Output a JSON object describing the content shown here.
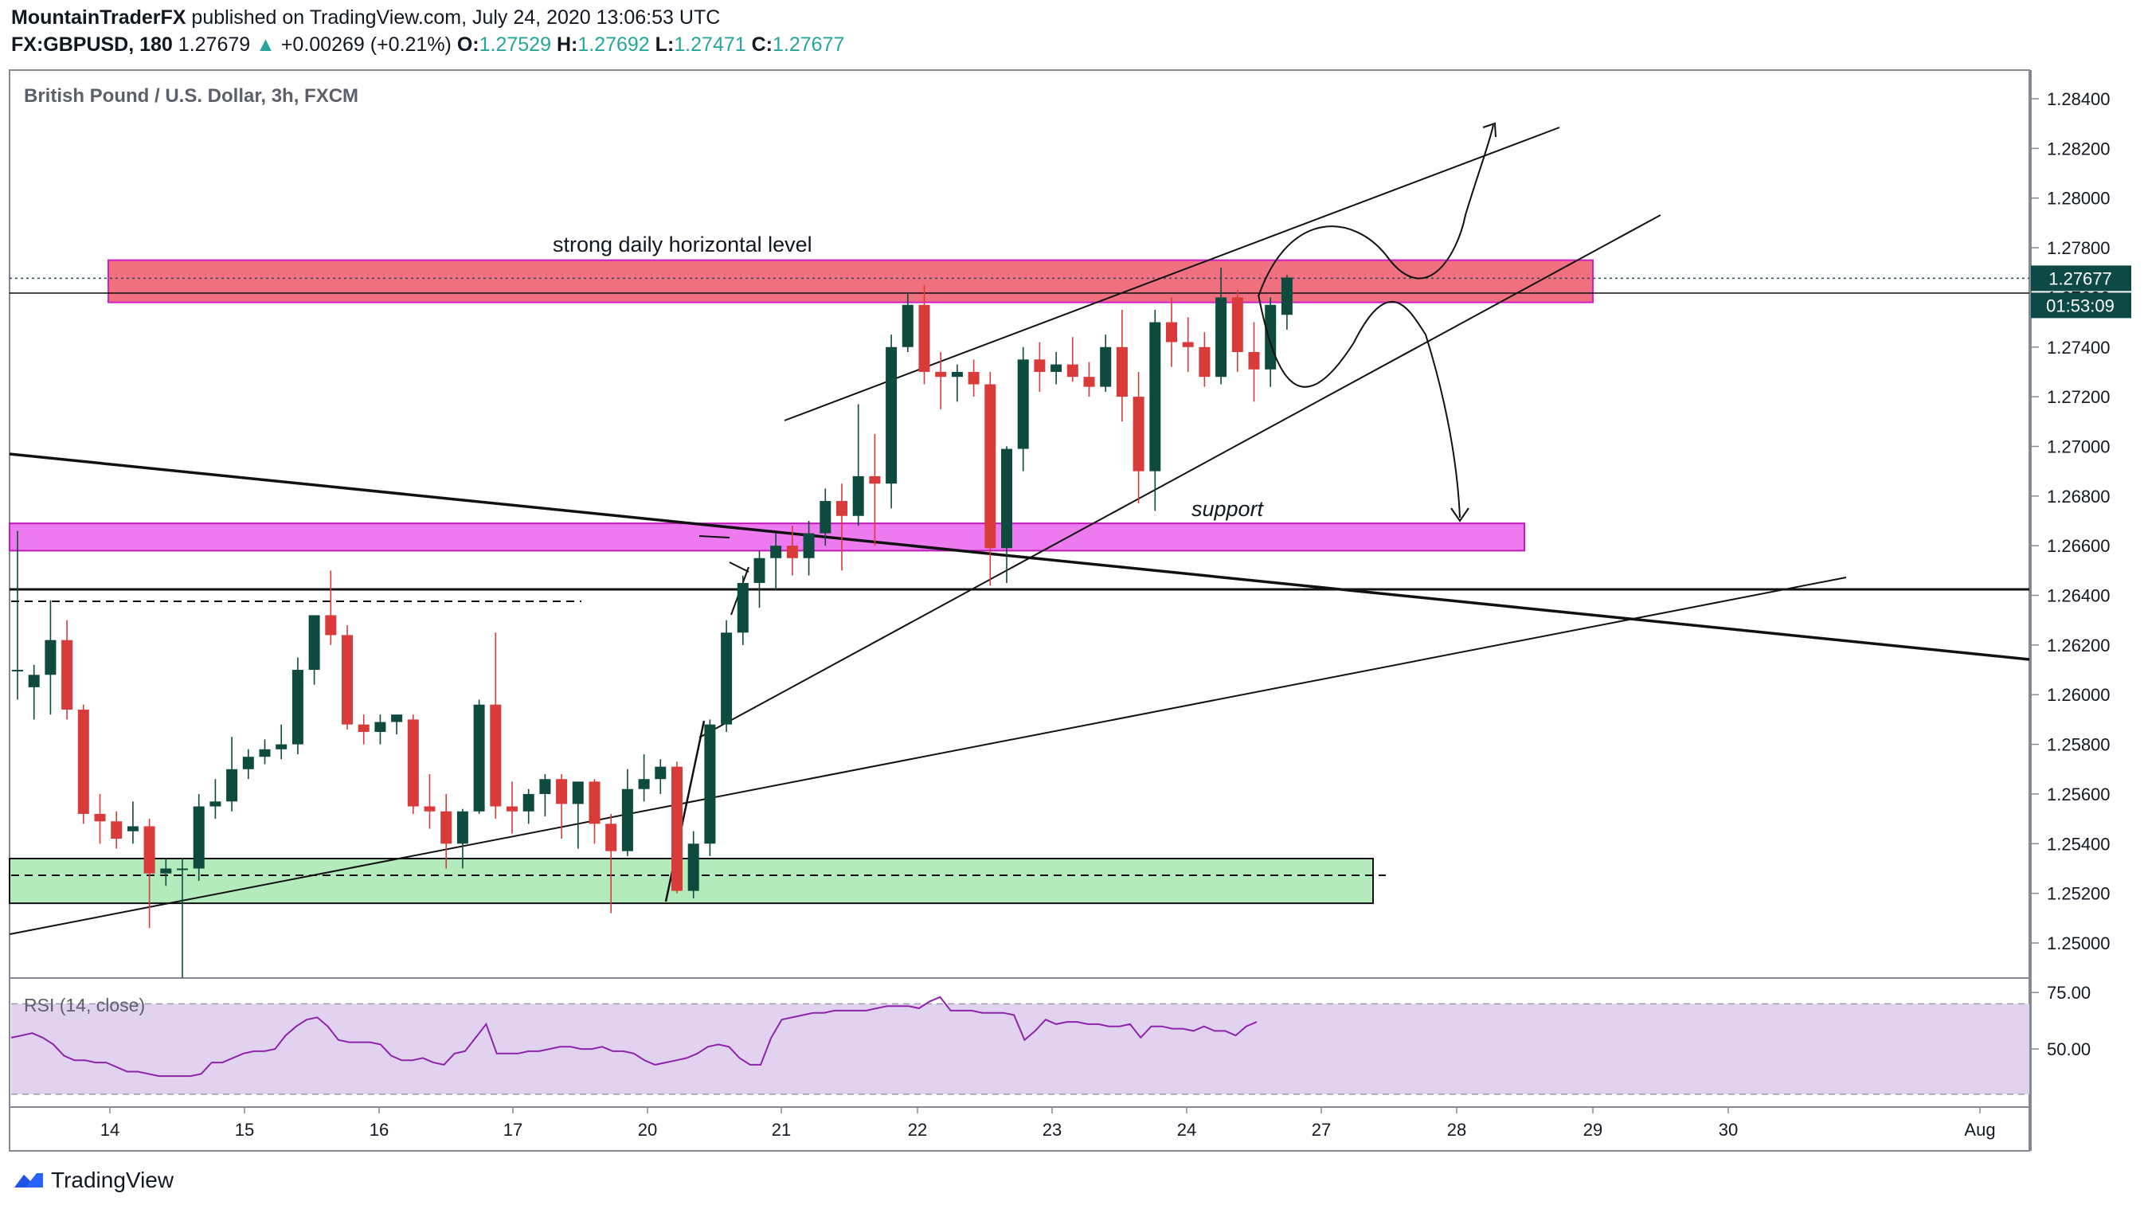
{
  "header": {
    "author": "MountainTraderFX",
    "published": "published on TradingView.com, July 24, 2020 13:06:53 UTC",
    "symbol": "FX:GBPUSD, 180",
    "price": "1.27679",
    "change_arrow": "▲",
    "change": "+0.00269 (+0.21%)",
    "o_label": "O:",
    "o": "1.27529",
    "h_label": "H:",
    "h": "1.27692",
    "l_label": "L:",
    "l": "1.27471",
    "c_label": "C:",
    "c": "1.27677"
  },
  "chart_data": {
    "type": "candlestick",
    "title": "British Pound / U.S. Dollar, 3h, FXCM",
    "y_axis": {
      "ticks": [
        "1.28400",
        "1.28200",
        "1.28000",
        "1.27800",
        "1.27600",
        "1.27400",
        "1.27200",
        "1.27000",
        "1.26800",
        "1.26600",
        "1.26400",
        "1.26200",
        "1.26000",
        "1.25800",
        "1.25600",
        "1.25400",
        "1.25200",
        "1.25000"
      ],
      "range": [
        1.249,
        1.2851
      ]
    },
    "x_axis": {
      "ticks": [
        "14",
        "15",
        "16",
        "17",
        "20",
        "21",
        "22",
        "23",
        "24",
        "27",
        "28",
        "29",
        "30",
        "Aug"
      ]
    },
    "last_price_label": "1.27677",
    "countdown_label": "01:53:09",
    "candles": [
      {
        "o": 1.261,
        "h": 1.2666,
        "l": 1.2598,
        "c": 1.261
      },
      {
        "o": 1.2603,
        "h": 1.2612,
        "l": 1.259,
        "c": 1.2608
      },
      {
        "o": 1.2608,
        "h": 1.2638,
        "l": 1.2592,
        "c": 1.2622
      },
      {
        "o": 1.2622,
        "h": 1.263,
        "l": 1.259,
        "c": 1.2594
      },
      {
        "o": 1.2594,
        "h": 1.2596,
        "l": 1.2548,
        "c": 1.2552
      },
      {
        "o": 1.2552,
        "h": 1.256,
        "l": 1.254,
        "c": 1.2549
      },
      {
        "o": 1.2549,
        "h": 1.2553,
        "l": 1.2538,
        "c": 1.2542
      },
      {
        "o": 1.2545,
        "h": 1.2557,
        "l": 1.254,
        "c": 1.2547
      },
      {
        "o": 1.2547,
        "h": 1.255,
        "l": 1.2506,
        "c": 1.2528
      },
      {
        "o": 1.2528,
        "h": 1.2534,
        "l": 1.2523,
        "c": 1.253
      },
      {
        "o": 1.253,
        "h": 1.2534,
        "l": 1.2486,
        "c": 1.253
      },
      {
        "o": 1.253,
        "h": 1.256,
        "l": 1.2525,
        "c": 1.2555
      },
      {
        "o": 1.2555,
        "h": 1.2566,
        "l": 1.255,
        "c": 1.2557
      },
      {
        "o": 1.2557,
        "h": 1.2583,
        "l": 1.2553,
        "c": 1.257
      },
      {
        "o": 1.257,
        "h": 1.2578,
        "l": 1.2566,
        "c": 1.2575
      },
      {
        "o": 1.2575,
        "h": 1.2582,
        "l": 1.2572,
        "c": 1.2578
      },
      {
        "o": 1.2578,
        "h": 1.2588,
        "l": 1.2574,
        "c": 1.258
      },
      {
        "o": 1.258,
        "h": 1.2615,
        "l": 1.2576,
        "c": 1.261
      },
      {
        "o": 1.261,
        "h": 1.2632,
        "l": 1.2604,
        "c": 1.2632
      },
      {
        "o": 1.2632,
        "h": 1.265,
        "l": 1.262,
        "c": 1.2624
      },
      {
        "o": 1.2624,
        "h": 1.2628,
        "l": 1.2586,
        "c": 1.2588
      },
      {
        "o": 1.2588,
        "h": 1.2592,
        "l": 1.258,
        "c": 1.2585
      },
      {
        "o": 1.2585,
        "h": 1.2592,
        "l": 1.258,
        "c": 1.2589
      },
      {
        "o": 1.2589,
        "h": 1.2592,
        "l": 1.2584,
        "c": 1.2592
      },
      {
        "o": 1.259,
        "h": 1.2592,
        "l": 1.2552,
        "c": 1.2555
      },
      {
        "o": 1.2555,
        "h": 1.2568,
        "l": 1.2546,
        "c": 1.2553
      },
      {
        "o": 1.2553,
        "h": 1.256,
        "l": 1.253,
        "c": 1.254
      },
      {
        "o": 1.254,
        "h": 1.2554,
        "l": 1.253,
        "c": 1.2553
      },
      {
        "o": 1.2553,
        "h": 1.2598,
        "l": 1.2552,
        "c": 1.2596
      },
      {
        "o": 1.2596,
        "h": 1.2625,
        "l": 1.255,
        "c": 1.2555
      },
      {
        "o": 1.2555,
        "h": 1.2565,
        "l": 1.2544,
        "c": 1.2553
      },
      {
        "o": 1.2553,
        "h": 1.2562,
        "l": 1.2548,
        "c": 1.256
      },
      {
        "o": 1.256,
        "h": 1.2568,
        "l": 1.2551,
        "c": 1.2566
      },
      {
        "o": 1.2566,
        "h": 1.2568,
        "l": 1.2542,
        "c": 1.2556
      },
      {
        "o": 1.2556,
        "h": 1.2565,
        "l": 1.2538,
        "c": 1.2565
      },
      {
        "o": 1.2565,
        "h": 1.2566,
        "l": 1.254,
        "c": 1.2548
      },
      {
        "o": 1.2548,
        "h": 1.2552,
        "l": 1.2512,
        "c": 1.2537
      },
      {
        "o": 1.2537,
        "h": 1.257,
        "l": 1.2535,
        "c": 1.2562
      },
      {
        "o": 1.2562,
        "h": 1.2576,
        "l": 1.2557,
        "c": 1.2566
      },
      {
        "o": 1.2566,
        "h": 1.2574,
        "l": 1.256,
        "c": 1.2571
      },
      {
        "o": 1.2571,
        "h": 1.2573,
        "l": 1.252,
        "c": 1.2521
      },
      {
        "o": 1.2521,
        "h": 1.2545,
        "l": 1.2518,
        "c": 1.254
      },
      {
        "o": 1.254,
        "h": 1.259,
        "l": 1.2535,
        "c": 1.2588
      },
      {
        "o": 1.2588,
        "h": 1.263,
        "l": 1.2585,
        "c": 1.2625
      },
      {
        "o": 1.2625,
        "h": 1.2648,
        "l": 1.262,
        "c": 1.2645
      },
      {
        "o": 1.2645,
        "h": 1.2658,
        "l": 1.2635,
        "c": 1.2655
      },
      {
        "o": 1.2655,
        "h": 1.2665,
        "l": 1.2642,
        "c": 1.266
      },
      {
        "o": 1.266,
        "h": 1.2668,
        "l": 1.2648,
        "c": 1.2655
      },
      {
        "o": 1.2655,
        "h": 1.267,
        "l": 1.2648,
        "c": 1.2665
      },
      {
        "o": 1.2665,
        "h": 1.2683,
        "l": 1.266,
        "c": 1.2678
      },
      {
        "o": 1.2678,
        "h": 1.2685,
        "l": 1.265,
        "c": 1.2672
      },
      {
        "o": 1.2672,
        "h": 1.2717,
        "l": 1.2668,
        "c": 1.2688
      },
      {
        "o": 1.2688,
        "h": 1.2705,
        "l": 1.266,
        "c": 1.2685
      },
      {
        "o": 1.2685,
        "h": 1.2745,
        "l": 1.2675,
        "c": 1.274
      },
      {
        "o": 1.274,
        "h": 1.2762,
        "l": 1.2738,
        "c": 1.2757
      },
      {
        "o": 1.2757,
        "h": 1.2765,
        "l": 1.2725,
        "c": 1.273
      },
      {
        "o": 1.273,
        "h": 1.2738,
        "l": 1.2715,
        "c": 1.2728
      },
      {
        "o": 1.2728,
        "h": 1.2733,
        "l": 1.2718,
        "c": 1.273
      },
      {
        "o": 1.273,
        "h": 1.2735,
        "l": 1.272,
        "c": 1.2725
      },
      {
        "o": 1.2725,
        "h": 1.273,
        "l": 1.2644,
        "c": 1.2659
      },
      {
        "o": 1.2659,
        "h": 1.27,
        "l": 1.2645,
        "c": 1.2699
      },
      {
        "o": 1.2699,
        "h": 1.274,
        "l": 1.269,
        "c": 1.2735
      },
      {
        "o": 1.2735,
        "h": 1.2742,
        "l": 1.2722,
        "c": 1.273
      },
      {
        "o": 1.273,
        "h": 1.2738,
        "l": 1.2725,
        "c": 1.2733
      },
      {
        "o": 1.2733,
        "h": 1.2744,
        "l": 1.2726,
        "c": 1.2728
      },
      {
        "o": 1.2728,
        "h": 1.2734,
        "l": 1.272,
        "c": 1.2724
      },
      {
        "o": 1.2724,
        "h": 1.2745,
        "l": 1.2722,
        "c": 1.274
      },
      {
        "o": 1.274,
        "h": 1.2755,
        "l": 1.271,
        "c": 1.272
      },
      {
        "o": 1.272,
        "h": 1.273,
        "l": 1.2677,
        "c": 1.269
      },
      {
        "o": 1.269,
        "h": 1.2755,
        "l": 1.2674,
        "c": 1.275
      },
      {
        "o": 1.275,
        "h": 1.276,
        "l": 1.2732,
        "c": 1.2742
      },
      {
        "o": 1.2742,
        "h": 1.2752,
        "l": 1.273,
        "c": 1.274
      },
      {
        "o": 1.274,
        "h": 1.2746,
        "l": 1.2724,
        "c": 1.2728
      },
      {
        "o": 1.2728,
        "h": 1.2772,
        "l": 1.2725,
        "c": 1.276
      },
      {
        "o": 1.276,
        "h": 1.2763,
        "l": 1.273,
        "c": 1.2738
      },
      {
        "o": 1.2738,
        "h": 1.275,
        "l": 1.2718,
        "c": 1.2731
      },
      {
        "o": 1.2731,
        "h": 1.276,
        "l": 1.2724,
        "c": 1.2757
      },
      {
        "o": 1.2753,
        "h": 1.2769,
        "l": 1.2747,
        "c": 1.2768
      }
    ],
    "zones": [
      {
        "label": "strong daily horizontal level",
        "from": 1.2758,
        "to": 1.2775,
        "color": "#f0707f"
      },
      {
        "label": "support",
        "from": 1.2658,
        "to": 1.2669,
        "color": "#ee7af0"
      },
      {
        "label": "",
        "from": 1.2516,
        "to": 1.2534,
        "color": "#b4ebbd"
      }
    ],
    "rsi": {
      "label": "RSI (14, close)",
      "ticks": [
        "75.00",
        "50.00"
      ],
      "upper": 70,
      "lower": 30,
      "range": [
        25,
        80
      ],
      "values": [
        55,
        56,
        57,
        55,
        52,
        47,
        45,
        45,
        44,
        44,
        42,
        40,
        40,
        39,
        38,
        38,
        38,
        38,
        39,
        44,
        44,
        46,
        48,
        49,
        49,
        50,
        56,
        60,
        63,
        64,
        60,
        54,
        53,
        53,
        53,
        52,
        47,
        45,
        45,
        46,
        44,
        43,
        48,
        49,
        55,
        61,
        48,
        48,
        48,
        49,
        49,
        50,
        51,
        51,
        50,
        50,
        51,
        49,
        49,
        48,
        45,
        43,
        44,
        45,
        46,
        48,
        51,
        52,
        51,
        46,
        43,
        43,
        55,
        63,
        64,
        65,
        66,
        66,
        67,
        67,
        67,
        67,
        68,
        69,
        69,
        69,
        68,
        71,
        73,
        67,
        67,
        67,
        66,
        66,
        66,
        65,
        54,
        58,
        63,
        61,
        62,
        62,
        61,
        61,
        60,
        60,
        61,
        55,
        60,
        60,
        59,
        59,
        58,
        60,
        58,
        58,
        56,
        60,
        62
      ]
    }
  },
  "footer": {
    "brand": "TradingView"
  }
}
